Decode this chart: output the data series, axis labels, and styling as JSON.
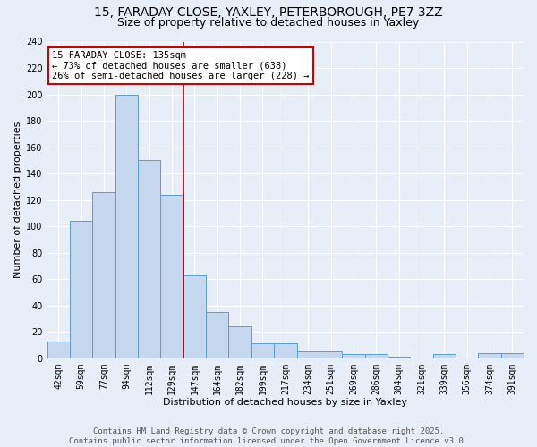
{
  "title_line1": "15, FARADAY CLOSE, YAXLEY, PETERBOROUGH, PE7 3ZZ",
  "title_line2": "Size of property relative to detached houses in Yaxley",
  "xlabel": "Distribution of detached houses by size in Yaxley",
  "ylabel": "Number of detached properties",
  "categories": [
    "42sqm",
    "59sqm",
    "77sqm",
    "94sqm",
    "112sqm",
    "129sqm",
    "147sqm",
    "164sqm",
    "182sqm",
    "199sqm",
    "217sqm",
    "234sqm",
    "251sqm",
    "269sqm",
    "286sqm",
    "304sqm",
    "321sqm",
    "339sqm",
    "356sqm",
    "374sqm",
    "391sqm"
  ],
  "values": [
    13,
    104,
    126,
    200,
    150,
    124,
    63,
    35,
    24,
    11,
    11,
    5,
    5,
    3,
    3,
    1,
    0,
    3,
    0,
    4,
    4
  ],
  "bar_color": "#c5d8f0",
  "bar_edge_color": "#5b9bd5",
  "vline_x": 5.5,
  "vline_color": "#aa0000",
  "annotation_text": "15 FARADAY CLOSE: 135sqm\n← 73% of detached houses are smaller (638)\n26% of semi-detached houses are larger (228) →",
  "annotation_box_color": "#ffffff",
  "annotation_box_edge": "#cc0000",
  "ylim": [
    0,
    240
  ],
  "yticks": [
    0,
    20,
    40,
    60,
    80,
    100,
    120,
    140,
    160,
    180,
    200,
    220,
    240
  ],
  "footer_text": "Contains HM Land Registry data © Crown copyright and database right 2025.\nContains public sector information licensed under the Open Government Licence v3.0.",
  "background_color": "#e8eef8",
  "plot_bg_color": "#e8eef8",
  "grid_color": "#ffffff",
  "title_fontsize": 10,
  "subtitle_fontsize": 9,
  "axis_label_fontsize": 8,
  "tick_fontsize": 7,
  "annotation_fontsize": 7.5,
  "footer_fontsize": 6.5
}
